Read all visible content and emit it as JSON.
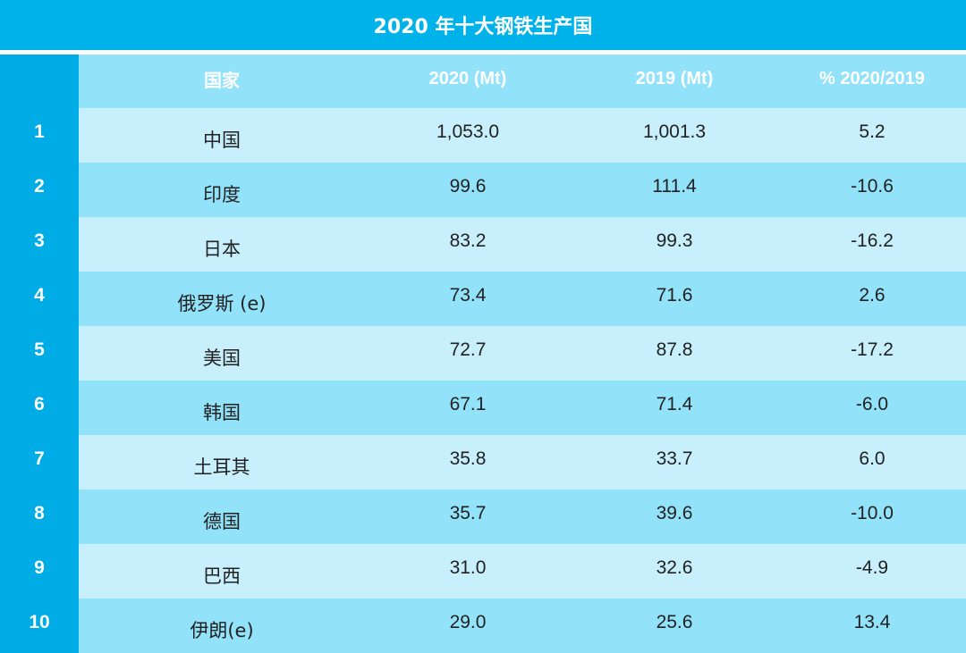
{
  "title": "2020 年十大钢铁生产国",
  "header": {
    "rank": "",
    "country": "国家",
    "col_2020": "2020 (Mt)",
    "col_2019": "2019 (Mt)",
    "col_pct": "% 2020/2019"
  },
  "rows": [
    {
      "rank": "1",
      "country": "中国",
      "v2020": "1,053.0",
      "v2019": "1,001.3",
      "pct": "5.2"
    },
    {
      "rank": "2",
      "country": "印度",
      "v2020": "99.6",
      "v2019": "111.4",
      "pct": "-10.6"
    },
    {
      "rank": "3",
      "country": "日本",
      "v2020": "83.2",
      "v2019": "99.3",
      "pct": "-16.2"
    },
    {
      "rank": "4",
      "country": "俄罗斯 (e)",
      "v2020": "73.4",
      "v2019": "71.6",
      "pct": "2.6"
    },
    {
      "rank": "5",
      "country": "美国",
      "v2020": "72.7",
      "v2019": "87.8",
      "pct": "-17.2"
    },
    {
      "rank": "6",
      "country": "韩国",
      "v2020": "67.1",
      "v2019": "71.4",
      "pct": "-6.0"
    },
    {
      "rank": "7",
      "country": "土耳其",
      "v2020": "35.8",
      "v2019": "33.7",
      "pct": "6.0"
    },
    {
      "rank": "8",
      "country": "德国",
      "v2020": "35.7",
      "v2019": "39.6",
      "pct": "-10.0"
    },
    {
      "rank": "9",
      "country": "巴西",
      "v2020": "31.0",
      "v2019": "32.6",
      "pct": "-4.9"
    },
    {
      "rank": "10",
      "country": "伊朗(e)",
      "v2020": "29.0",
      "v2019": "25.6",
      "pct": "13.4"
    }
  ],
  "colors": {
    "title_bg": "#00b2ea",
    "rank_bg": "#00ace5",
    "row_light": "#c8effc",
    "row_dark": "#92e2fa",
    "header_text": "#ffffff"
  }
}
